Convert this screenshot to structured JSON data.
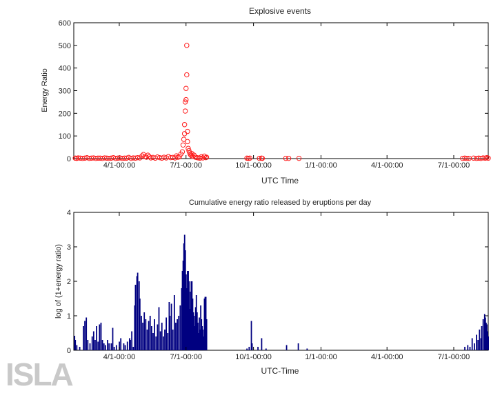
{
  "logo_text": "ISLA",
  "chart_data": [
    {
      "type": "scatter",
      "title": "Explosive events",
      "xlabel": "UTC Time",
      "ylabel": "Energy Ratio",
      "ylim": [
        0,
        600
      ],
      "yticks": [
        0,
        100,
        200,
        300,
        400,
        500,
        600
      ],
      "xlim": [
        0,
        565
      ],
      "xticks": [
        {
          "x": 62,
          "label": "4/1-00:00"
        },
        {
          "x": 153,
          "label": "7/1-00:00"
        },
        {
          "x": 245,
          "label": "10/1-00:00"
        },
        {
          "x": 337,
          "label": "1/1-00:00"
        },
        {
          "x": 427,
          "label": "4/1-00:00"
        },
        {
          "x": 518,
          "label": "7/1-00:00"
        }
      ],
      "marker_color": "#ff1a1a",
      "points": [
        [
          2,
          2
        ],
        [
          4,
          1
        ],
        [
          6,
          3
        ],
        [
          9,
          2
        ],
        [
          12,
          1
        ],
        [
          15,
          2
        ],
        [
          18,
          4
        ],
        [
          21,
          1
        ],
        [
          24,
          2
        ],
        [
          27,
          3
        ],
        [
          30,
          1
        ],
        [
          33,
          2
        ],
        [
          36,
          2
        ],
        [
          39,
          1
        ],
        [
          42,
          3
        ],
        [
          45,
          2
        ],
        [
          48,
          1
        ],
        [
          51,
          2
        ],
        [
          54,
          4
        ],
        [
          57,
          1
        ],
        [
          60,
          2
        ],
        [
          63,
          3
        ],
        [
          66,
          1
        ],
        [
          69,
          2
        ],
        [
          72,
          2
        ],
        [
          75,
          5
        ],
        [
          78,
          1
        ],
        [
          81,
          3
        ],
        [
          84,
          2
        ],
        [
          87,
          4
        ],
        [
          90,
          3
        ],
        [
          93,
          12
        ],
        [
          95,
          18
        ],
        [
          97,
          9
        ],
        [
          99,
          6
        ],
        [
          101,
          15
        ],
        [
          103,
          8
        ],
        [
          105,
          3
        ],
        [
          108,
          5
        ],
        [
          111,
          2
        ],
        [
          114,
          7
        ],
        [
          117,
          4
        ],
        [
          120,
          2
        ],
        [
          123,
          6
        ],
        [
          126,
          3
        ],
        [
          129,
          9
        ],
        [
          132,
          4
        ],
        [
          135,
          5
        ],
        [
          138,
          3
        ],
        [
          140,
          12
        ],
        [
          142,
          6
        ],
        [
          144,
          8
        ],
        [
          146,
          20
        ],
        [
          148,
          30
        ],
        [
          149,
          60
        ],
        [
          150,
          85
        ],
        [
          151,
          110
        ],
        [
          151,
          150
        ],
        [
          152,
          210
        ],
        [
          152,
          250
        ],
        [
          153,
          260
        ],
        [
          153,
          310
        ],
        [
          154,
          370
        ],
        [
          154,
          500
        ],
        [
          155,
          120
        ],
        [
          155,
          75
        ],
        [
          156,
          45
        ],
        [
          157,
          35
        ],
        [
          158,
          25
        ],
        [
          159,
          18
        ],
        [
          160,
          14
        ],
        [
          161,
          22
        ],
        [
          162,
          9
        ],
        [
          164,
          15
        ],
        [
          166,
          6
        ],
        [
          168,
          4
        ],
        [
          170,
          3
        ],
        [
          172,
          2
        ],
        [
          174,
          8
        ],
        [
          176,
          3
        ],
        [
          178,
          11
        ],
        [
          180,
          4
        ],
        [
          181,
          6
        ],
        [
          236,
          2
        ],
        [
          238,
          1
        ],
        [
          240,
          2
        ],
        [
          253,
          1
        ],
        [
          256,
          2
        ],
        [
          257,
          1
        ],
        [
          289,
          1
        ],
        [
          293,
          1
        ],
        [
          307,
          1
        ],
        [
          530,
          1
        ],
        [
          533,
          2
        ],
        [
          536,
          1
        ],
        [
          539,
          1
        ],
        [
          545,
          2
        ],
        [
          549,
          1
        ],
        [
          552,
          2
        ],
        [
          555,
          1
        ],
        [
          558,
          3
        ],
        [
          561,
          2
        ],
        [
          563,
          4
        ],
        [
          565,
          2
        ]
      ]
    },
    {
      "type": "bar",
      "title": "Cumulative energy ratio released by eruptions per day",
      "xlabel": "UTC-Time",
      "ylabel": "log of (1+energy ratio)",
      "ylim": [
        0,
        4
      ],
      "yticks": [
        0,
        1,
        2,
        3,
        4
      ],
      "xlim": [
        0,
        565
      ],
      "xticks": [
        {
          "x": 62,
          "label": "4/1-00:00"
        },
        {
          "x": 153,
          "label": "7/1-00:00"
        },
        {
          "x": 245,
          "label": "10/1-00:00"
        },
        {
          "x": 337,
          "label": "1/1-00:00"
        },
        {
          "x": 427,
          "label": "4/1-00:00"
        },
        {
          "x": 518,
          "label": "7/1-00:00"
        }
      ],
      "bar_color": "#000080",
      "bars": [
        [
          1,
          0.42
        ],
        [
          2,
          0.3
        ],
        [
          4,
          0.15
        ],
        [
          8,
          0.1
        ],
        [
          13,
          0.7
        ],
        [
          15,
          0.85
        ],
        [
          17,
          0.95
        ],
        [
          19,
          0.3
        ],
        [
          22,
          0.2
        ],
        [
          25,
          0.4
        ],
        [
          27,
          0.55
        ],
        [
          29,
          0.3
        ],
        [
          31,
          0.7
        ],
        [
          33,
          0.25
        ],
        [
          35,
          0.75
        ],
        [
          37,
          0.8
        ],
        [
          39,
          0.3
        ],
        [
          41,
          0.2
        ],
        [
          43,
          0.15
        ],
        [
          46,
          0.3
        ],
        [
          48,
          0.2
        ],
        [
          51,
          0.2
        ],
        [
          53,
          0.65
        ],
        [
          55,
          0.1
        ],
        [
          58,
          0.15
        ],
        [
          62,
          0.25
        ],
        [
          64,
          0.35
        ],
        [
          68,
          0.2
        ],
        [
          70,
          0.15
        ],
        [
          73,
          0.25
        ],
        [
          76,
          0.35
        ],
        [
          77,
          0.3
        ],
        [
          79,
          0.55
        ],
        [
          81,
          0.1
        ],
        [
          83,
          1.3
        ],
        [
          84,
          1.9
        ],
        [
          86,
          2.15
        ],
        [
          87,
          2.25
        ],
        [
          89,
          2.0
        ],
        [
          90,
          1.5
        ],
        [
          92,
          1.0
        ],
        [
          94,
          0.8
        ],
        [
          96,
          1.1
        ],
        [
          98,
          0.9
        ],
        [
          100,
          0.6
        ],
        [
          102,
          0.85
        ],
        [
          104,
          1.0
        ],
        [
          106,
          0.7
        ],
        [
          108,
          0.5
        ],
        [
          110,
          0.9
        ],
        [
          112,
          0.4
        ],
        [
          114,
          0.75
        ],
        [
          116,
          1.25
        ],
        [
          118,
          0.55
        ],
        [
          120,
          0.8
        ],
        [
          122,
          0.4
        ],
        [
          124,
          0.6
        ],
        [
          126,
          0.95
        ],
        [
          128,
          0.5
        ],
        [
          130,
          1.4
        ],
        [
          131,
          1.0
        ],
        [
          133,
          1.35
        ],
        [
          135,
          0.6
        ],
        [
          137,
          1.6
        ],
        [
          139,
          0.8
        ],
        [
          141,
          0.9
        ],
        [
          143,
          1.0
        ],
        [
          145,
          1.3
        ],
        [
          147,
          1.8
        ],
        [
          148,
          2.3
        ],
        [
          149,
          2.6
        ],
        [
          150,
          3.1
        ],
        [
          151,
          3.35
        ],
        [
          152,
          2.9
        ],
        [
          153,
          2.2
        ],
        [
          154,
          1.8
        ],
        [
          155,
          2.3
        ],
        [
          156,
          2.3
        ],
        [
          157,
          2.0
        ],
        [
          158,
          1.2
        ],
        [
          159,
          1.7
        ],
        [
          160,
          2.0
        ],
        [
          161,
          2.0
        ],
        [
          162,
          1.5
        ],
        [
          163,
          1.1
        ],
        [
          164,
          1.0
        ],
        [
          165,
          0.7
        ],
        [
          166,
          1.25
        ],
        [
          167,
          1.6
        ],
        [
          168,
          1.1
        ],
        [
          169,
          0.8
        ],
        [
          170,
          0.5
        ],
        [
          171,
          0.95
        ],
        [
          172,
          0.6
        ],
        [
          173,
          1.3
        ],
        [
          174,
          0.9
        ],
        [
          175,
          0.7
        ],
        [
          176,
          0.6
        ],
        [
          177,
          0.4
        ],
        [
          178,
          1.5
        ],
        [
          179,
          1.55
        ],
        [
          180,
          1.55
        ],
        [
          181,
          0.9
        ],
        [
          236,
          0.05
        ],
        [
          239,
          0.1
        ],
        [
          242,
          0.85
        ],
        [
          243,
          0.2
        ],
        [
          251,
          0.1
        ],
        [
          256,
          0.35
        ],
        [
          262,
          0.05
        ],
        [
          290,
          0.15
        ],
        [
          306,
          0.2
        ],
        [
          318,
          0.05
        ],
        [
          533,
          0.1
        ],
        [
          537,
          0.15
        ],
        [
          540,
          0.1
        ],
        [
          543,
          0.35
        ],
        [
          546,
          0.2
        ],
        [
          549,
          0.45
        ],
        [
          551,
          0.3
        ],
        [
          553,
          0.6
        ],
        [
          555,
          0.35
        ],
        [
          556,
          0.7
        ],
        [
          558,
          0.9
        ],
        [
          560,
          1.05
        ],
        [
          561,
          0.95
        ],
        [
          562,
          0.8
        ],
        [
          563,
          0.75
        ],
        [
          564,
          0.55
        ],
        [
          565,
          0.4
        ]
      ]
    }
  ]
}
